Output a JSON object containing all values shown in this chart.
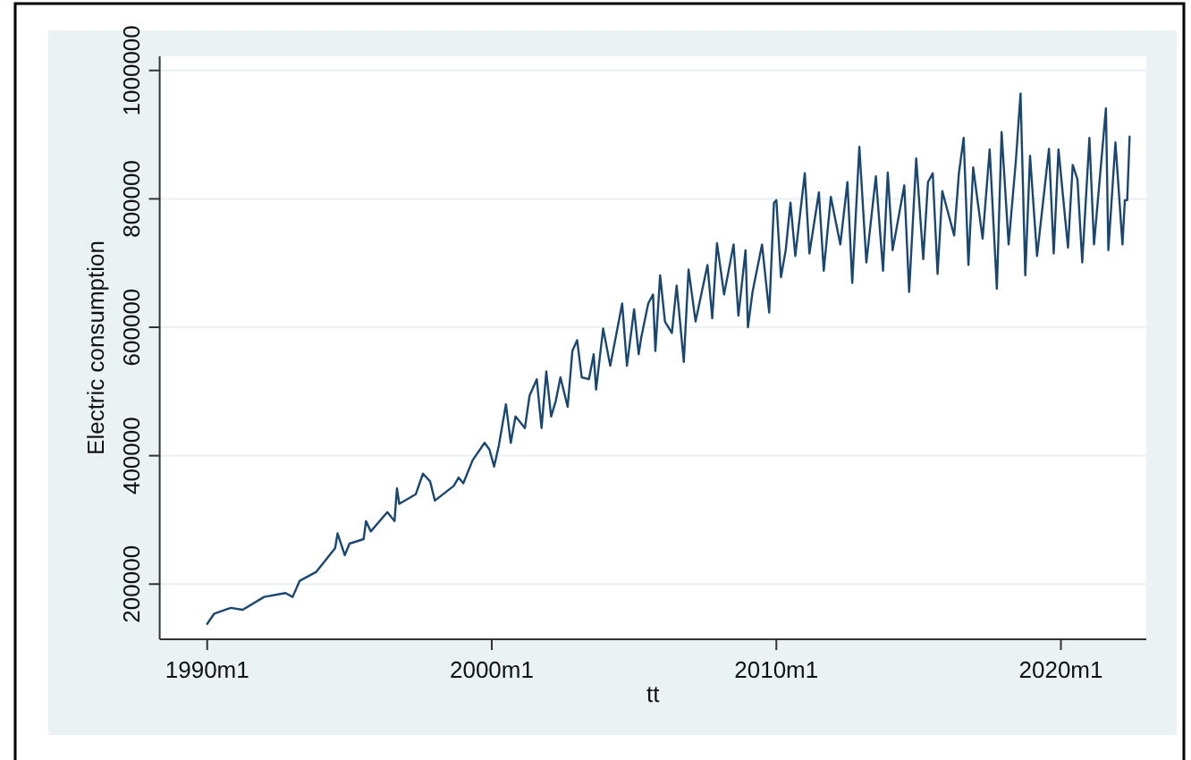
{
  "chart_data": {
    "type": "line",
    "xlabel": "tt",
    "ylabel": "Electric consumption",
    "x": [
      "1990-01",
      "1990-04",
      "1990-11",
      "1991-04",
      "1992-01",
      "1992-10",
      "1993-01",
      "1993-04",
      "1993-11",
      "1994-07",
      "1994-08",
      "1994-11",
      "1995-01",
      "1995-07",
      "1995-08",
      "1995-10",
      "1996-05",
      "1996-08",
      "1996-09",
      "1996-10",
      "1997-05",
      "1997-08",
      "1997-11",
      "1998-01",
      "1998-09",
      "1998-11",
      "1999-01",
      "1999-05",
      "1999-10",
      "1999-12",
      "2000-02",
      "2000-04",
      "2000-07",
      "2000-09",
      "2000-11",
      "2001-01",
      "2001-03",
      "2001-05",
      "2001-08",
      "2001-10",
      "2001-12",
      "2002-02",
      "2002-04",
      "2002-06",
      "2002-09",
      "2002-11",
      "2003-01",
      "2003-03",
      "2003-06",
      "2003-08",
      "2003-09",
      "2003-12",
      "2004-03",
      "2004-08",
      "2004-10",
      "2005-01",
      "2005-03",
      "2005-04",
      "2005-07",
      "2005-09",
      "2005-10",
      "2005-12",
      "2006-02",
      "2006-05",
      "2006-07",
      "2006-10",
      "2006-12",
      "2007-03",
      "2007-08",
      "2007-10",
      "2007-12",
      "2008-03",
      "2008-07",
      "2008-09",
      "2008-12",
      "2009-01",
      "2009-03",
      "2009-07",
      "2009-10",
      "2009-12",
      "2010-01",
      "2010-03",
      "2010-05",
      "2010-07",
      "2010-09",
      "2011-01",
      "2011-03",
      "2011-07",
      "2011-09",
      "2011-12",
      "2012-04",
      "2012-07",
      "2012-09",
      "2012-12",
      "2013-03",
      "2013-07",
      "2013-10",
      "2013-12",
      "2014-02",
      "2014-07",
      "2014-09",
      "2014-12",
      "2015-03",
      "2015-05",
      "2015-07",
      "2015-09",
      "2015-11",
      "2016-04",
      "2016-06",
      "2016-08",
      "2016-10",
      "2016-12",
      "2017-04",
      "2017-07",
      "2017-10",
      "2017-12",
      "2018-03",
      "2018-06",
      "2018-08",
      "2018-10",
      "2018-12",
      "2019-03",
      "2019-08",
      "2019-10",
      "2019-12",
      "2020-04",
      "2020-06",
      "2020-08",
      "2020-10",
      "2021-01",
      "2021-03",
      "2021-08",
      "2021-09",
      "2021-12",
      "2022-03",
      "2022-04",
      "2022-05",
      "2022-06"
    ],
    "values": [
      138000,
      154000,
      163000,
      160000,
      180000,
      186000,
      180000,
      205000,
      219000,
      256000,
      279000,
      245000,
      263000,
      270000,
      298000,
      282000,
      312000,
      298000,
      349000,
      325000,
      340000,
      372000,
      360000,
      330000,
      353000,
      366000,
      357000,
      393000,
      420000,
      410000,
      383000,
      416000,
      480000,
      420000,
      461000,
      452000,
      443000,
      494000,
      519000,
      443000,
      531000,
      461000,
      485000,
      522000,
      476000,
      563000,
      580000,
      522000,
      519000,
      558000,
      503000,
      598000,
      540000,
      637000,
      540000,
      628000,
      558000,
      583000,
      637000,
      651000,
      563000,
      681000,
      609000,
      591000,
      665000,
      546000,
      690000,
      609000,
      697000,
      614000,
      731000,
      651000,
      729000,
      618000,
      720000,
      600000,
      655000,
      729000,
      623000,
      794000,
      798000,
      678000,
      720000,
      794000,
      711000,
      840000,
      715000,
      810000,
      688000,
      803000,
      729000,
      826000,
      669000,
      881000,
      701000,
      835000,
      688000,
      841000,
      720000,
      821000,
      655000,
      863000,
      706000,
      826000,
      840000,
      683000,
      812000,
      743000,
      840000,
      895000,
      697000,
      849000,
      738000,
      877000,
      660000,
      904000,
      729000,
      858000,
      964000,
      681000,
      867000,
      711000,
      878000,
      715000,
      877000,
      724000,
      853000,
      830000,
      701000,
      895000,
      729000,
      941000,
      720000,
      888000,
      729000,
      798000,
      798000,
      897000
    ],
    "color": "#1a476f",
    "xlim": [
      "1988-05",
      "2023-01"
    ],
    "ylim": [
      114000,
      1022000
    ],
    "xticks": [
      {
        "value": "1990-01",
        "label": "1990m1"
      },
      {
        "value": "2000-01",
        "label": "2000m1"
      },
      {
        "value": "2010-01",
        "label": "2010m1"
      },
      {
        "value": "2020-01",
        "label": "2020m1"
      }
    ],
    "yticks": [
      200000,
      400000,
      600000,
      800000,
      1000000
    ],
    "grid": "y"
  }
}
